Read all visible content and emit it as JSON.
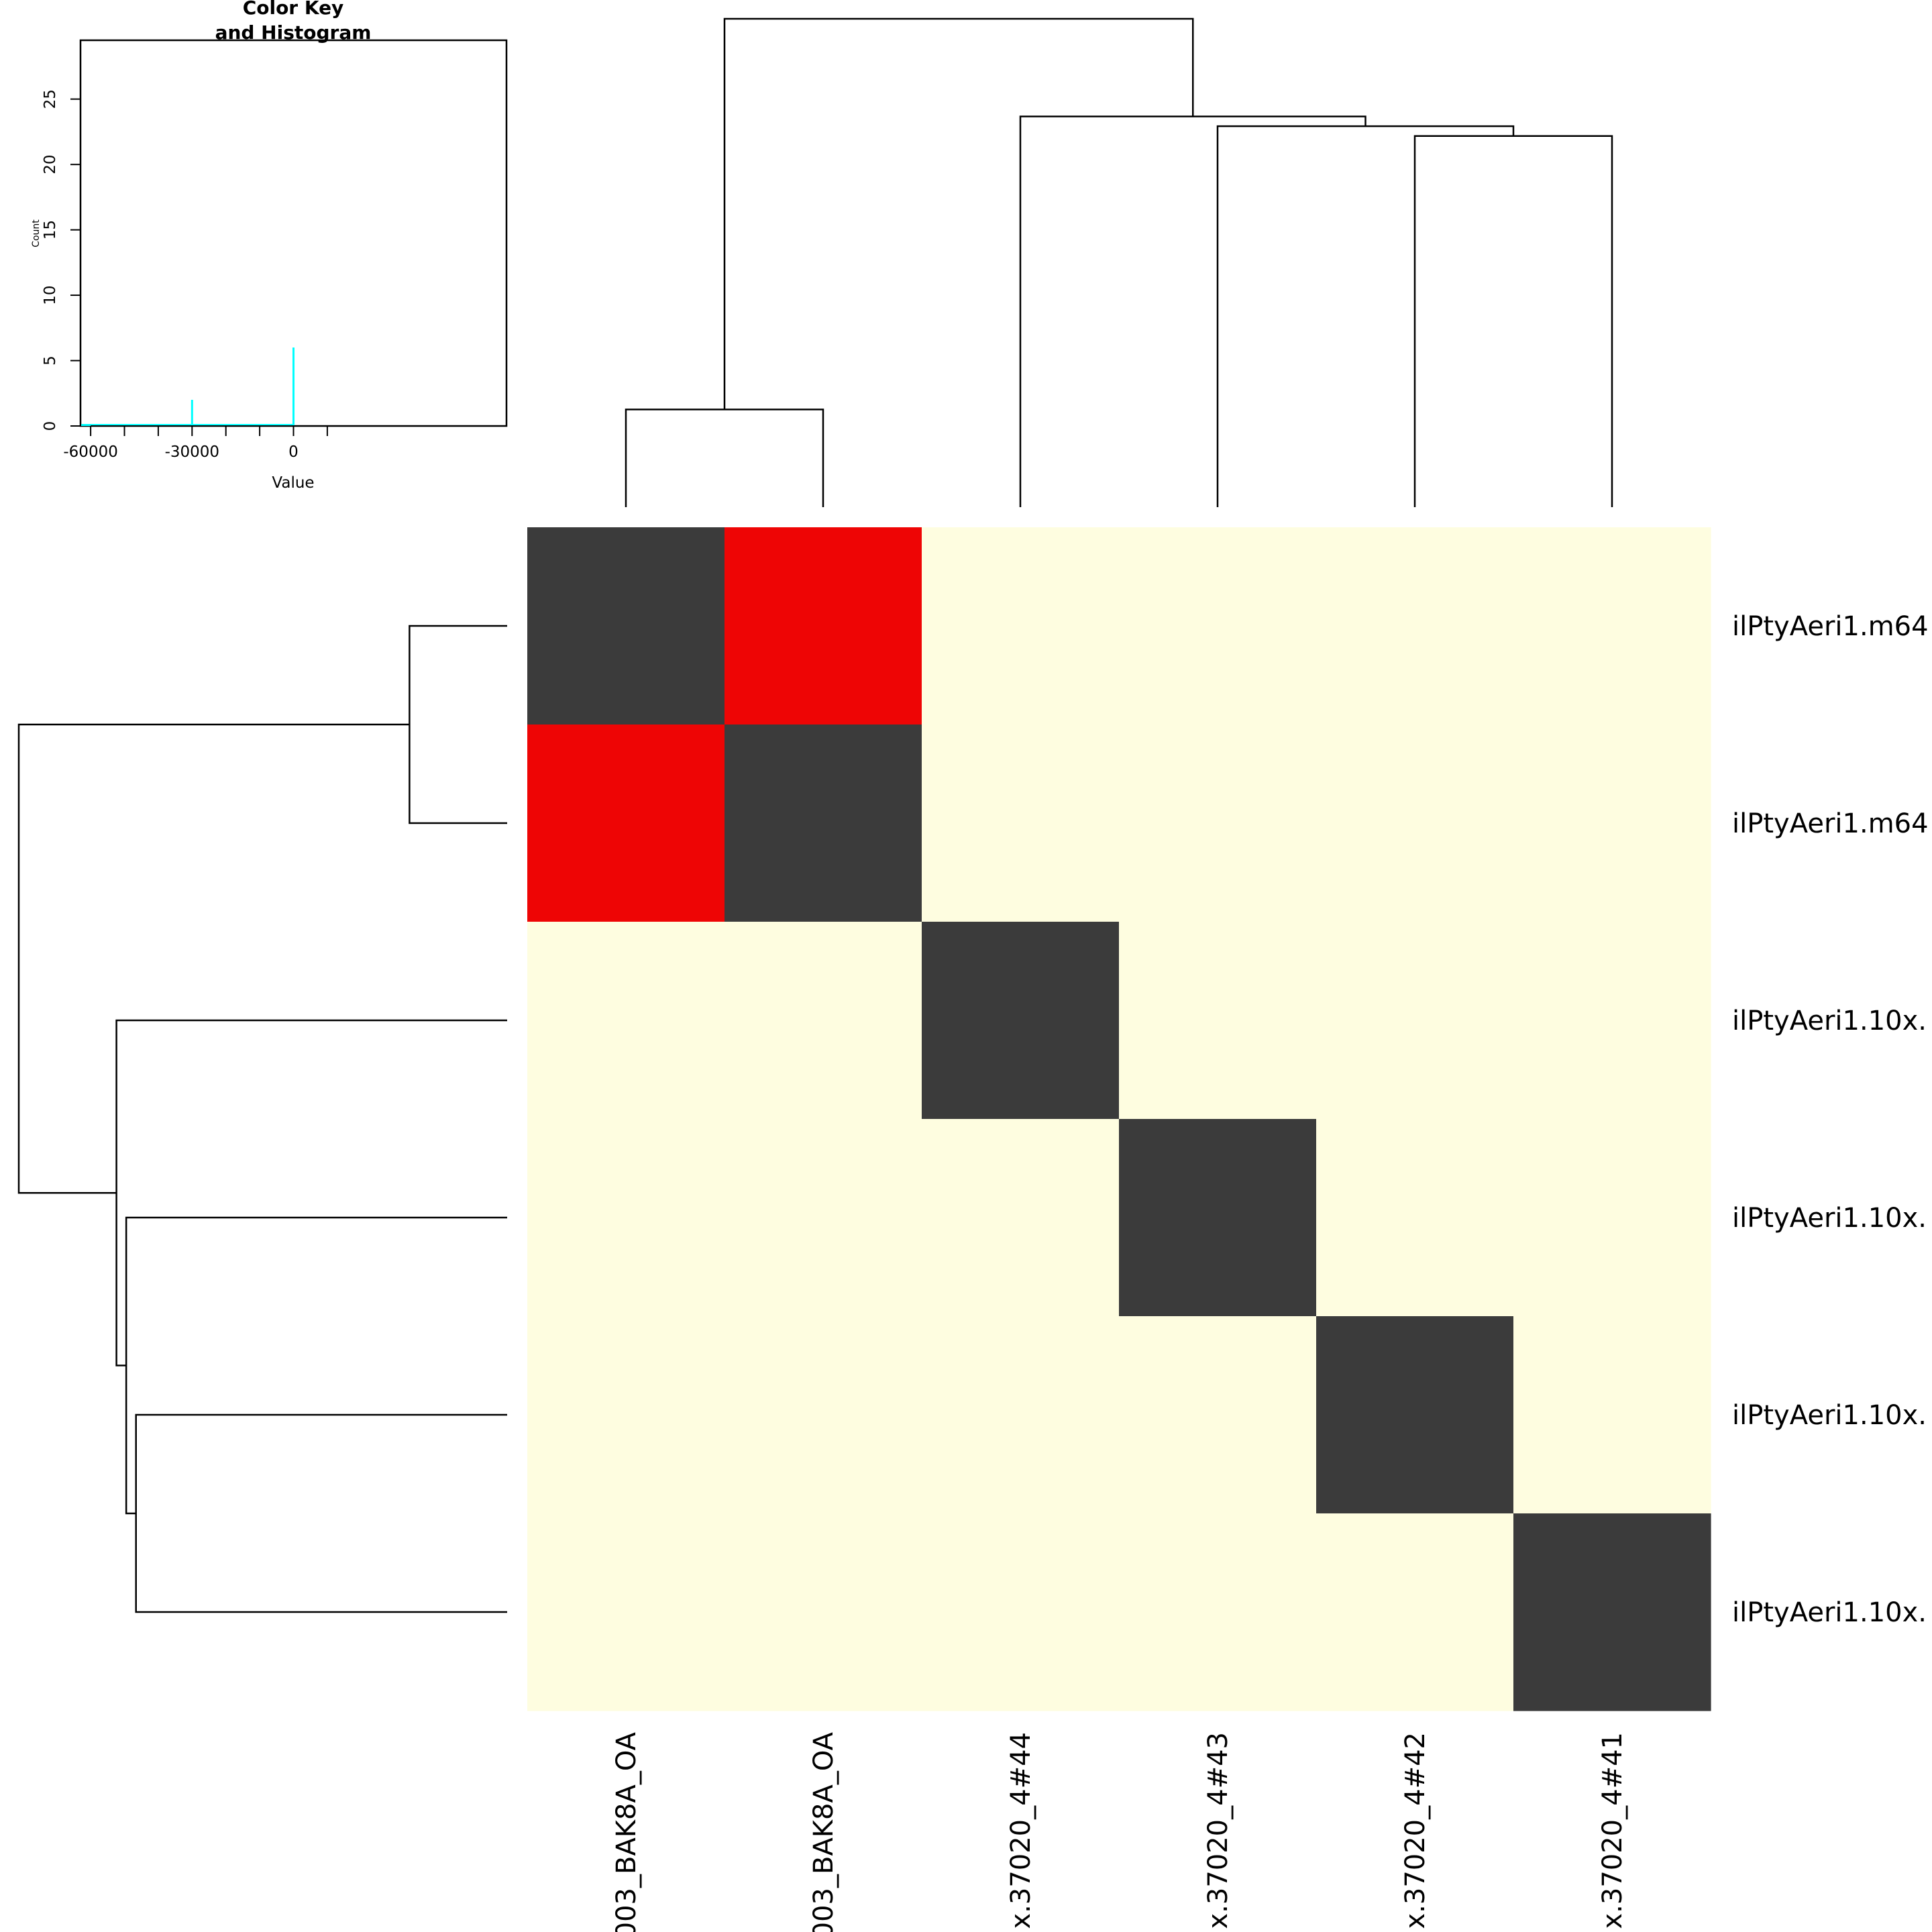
{
  "chart_data": {
    "type": "heatmap",
    "row_labels": [
      "ilPtyAeri1.m64",
      "ilPtyAeri1.m64",
      "ilPtyAeri1.10x.",
      "ilPtyAeri1.10x.",
      "ilPtyAeri1.10x.",
      "ilPtyAeri1.10x."
    ],
    "col_labels": [
      "003_BAK8A_OA",
      "003_BAK8A_OA",
      "x.37020_4#44",
      "x.37020_4#43",
      "x.37020_4#42",
      "x.37020_4#41"
    ],
    "cell_colors": [
      [
        "#3b3b3b",
        "#ee0505",
        "#fefde0",
        "#fefde0",
        "#fefde0",
        "#fefde0"
      ],
      [
        "#ee0505",
        "#3b3b3b",
        "#fefde0",
        "#fefde0",
        "#fefde0",
        "#fefde0"
      ],
      [
        "#fefde0",
        "#fefde0",
        "#3b3b3b",
        "#fefde0",
        "#fefde0",
        "#fefde0"
      ],
      [
        "#fefde0",
        "#fefde0",
        "#fefde0",
        "#3b3b3b",
        "#fefde0",
        "#fefde0"
      ],
      [
        "#fefde0",
        "#fefde0",
        "#fefde0",
        "#fefde0",
        "#3b3b3b",
        "#fefde0"
      ],
      [
        "#fefde0",
        "#fefde0",
        "#fefde0",
        "#fefde0",
        "#fefde0",
        "#3b3b3b"
      ]
    ],
    "dendrogram": {
      "merges": [
        {
          "left": [
            0
          ],
          "right": [
            1
          ],
          "height": 0.2
        },
        {
          "left": [
            4
          ],
          "right": [
            5
          ],
          "height": 0.76
        },
        {
          "left": [
            3
          ],
          "right": [
            4,
            5
          ],
          "height": 0.78
        },
        {
          "left": [
            2
          ],
          "right": [
            3,
            4,
            5
          ],
          "height": 0.8
        },
        {
          "left": [
            0,
            1
          ],
          "right": [
            2,
            3,
            4,
            5
          ],
          "height": 1.0
        }
      ]
    },
    "color_key": {
      "title": "Color Key",
      "subtitle": "and Histogram",
      "xlabel": "Value",
      "ylabel": "Count",
      "x_range": [
        -63000,
        63000
      ],
      "y_range": [
        0,
        29.5
      ],
      "x_tick_values": [
        -60000,
        -50000,
        -40000,
        -30000,
        -20000,
        -10000,
        0,
        10000
      ],
      "x_tick_labels": [
        {
          "value": -60000,
          "label": "-60000"
        },
        {
          "value": -30000,
          "label": "-30000"
        },
        {
          "value": 0,
          "label": "0"
        }
      ],
      "y_ticks": [
        {
          "value": 0,
          "label": "0"
        },
        {
          "value": 5,
          "label": "5"
        },
        {
          "value": 10,
          "label": "10"
        },
        {
          "value": 15,
          "label": "15"
        },
        {
          "value": 20,
          "label": "20"
        },
        {
          "value": 25,
          "label": "25"
        }
      ],
      "histogram_color": "#00ffff",
      "histogram": [
        {
          "value": -30000,
          "count": 2
        },
        {
          "value": 0,
          "count": 6
        }
      ]
    },
    "colors": {
      "self": "#3b3b3b",
      "red": "#ee0505",
      "background": "#fefde0"
    }
  }
}
